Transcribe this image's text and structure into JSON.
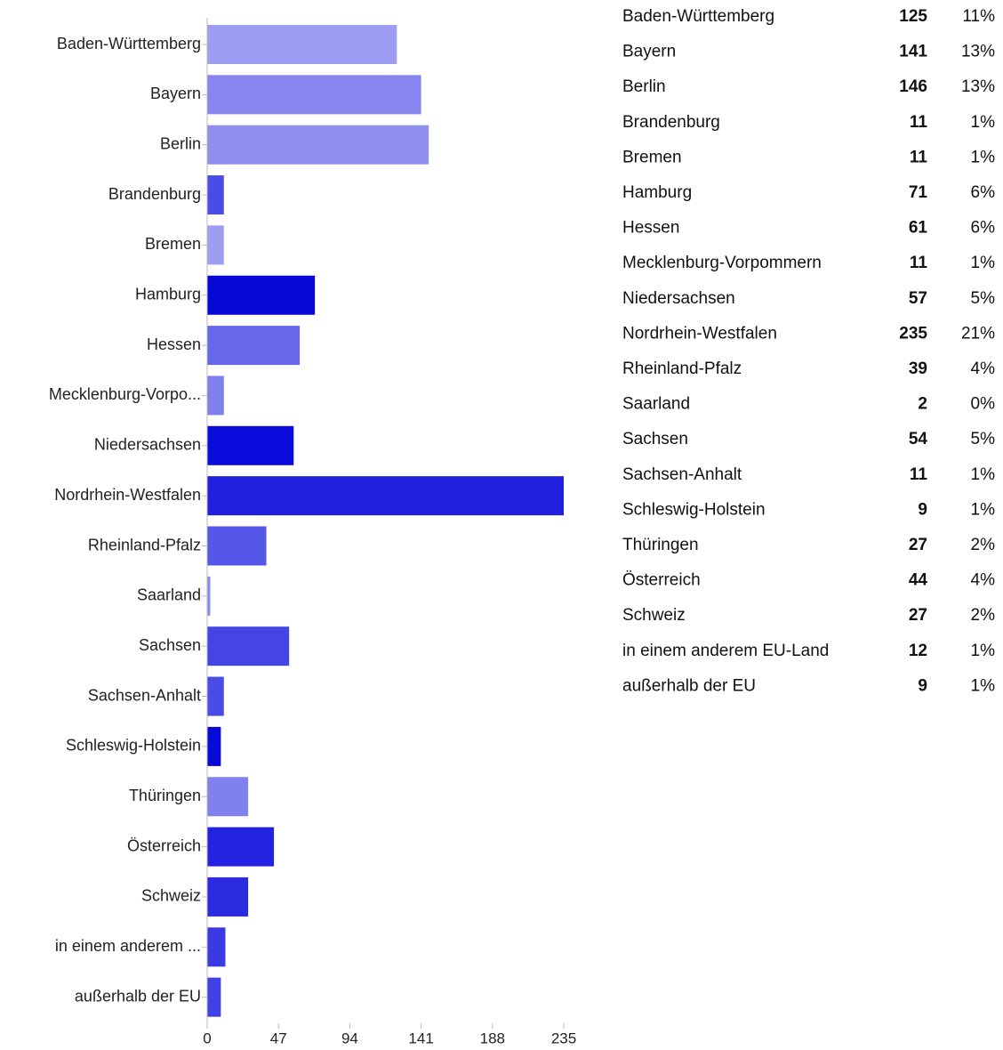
{
  "chart_data": {
    "type": "hbar",
    "categories": [
      "Baden-Württemberg",
      "Bayern",
      "Berlin",
      "Brandenburg",
      "Bremen",
      "Hamburg",
      "Hessen",
      "Mecklenburg-Vorpo...",
      "Niedersachsen",
      "Nordrhein-Westfalen",
      "Rheinland-Pfalz",
      "Saarland",
      "Sachsen",
      "Sachsen-Anhalt",
      "Schleswig-Holstein",
      "Thüringen",
      "Österreich",
      "Schweiz",
      "in einem anderem ...",
      "außerhalb der EU"
    ],
    "values": [
      125,
      141,
      146,
      11,
      11,
      71,
      61,
      11,
      57,
      235,
      39,
      2,
      54,
      11,
      9,
      27,
      44,
      27,
      12,
      9
    ],
    "colors": [
      "#9d9df2",
      "#8686ee",
      "#8f8ff0",
      "#4b4be8",
      "#9d9df2",
      "#0707d6",
      "#6767ea",
      "#7f7fee",
      "#0b0bdc",
      "#2020df",
      "#5656e8",
      "#8888ee",
      "#4545e6",
      "#4b4be8",
      "#0909d8",
      "#8080ee",
      "#2222df",
      "#2b2be2",
      "#3a3ae4",
      "#4141e6"
    ],
    "xlim": [
      0,
      235
    ],
    "xticks": [
      0,
      47,
      94,
      141,
      188,
      235
    ]
  },
  "table": {
    "rows": [
      [
        "Baden-Württemberg",
        "125",
        "11%"
      ],
      [
        "Bayern",
        "141",
        "13%"
      ],
      [
        "Berlin",
        "146",
        "13%"
      ],
      [
        "Brandenburg",
        "11",
        "1%"
      ],
      [
        "Bremen",
        "11",
        "1%"
      ],
      [
        "Hamburg",
        "71",
        "6%"
      ],
      [
        "Hessen",
        "61",
        "6%"
      ],
      [
        "Mecklenburg-Vorpommern",
        "11",
        "1%"
      ],
      [
        "Niedersachsen",
        "57",
        "5%"
      ],
      [
        "Nordrhein-Westfalen",
        "235",
        "21%"
      ],
      [
        "Rheinland-Pfalz",
        "39",
        "4%"
      ],
      [
        "Saarland",
        "2",
        "0%"
      ],
      [
        "Sachsen",
        "54",
        "5%"
      ],
      [
        "Sachsen-Anhalt",
        "11",
        "1%"
      ],
      [
        "Schleswig-Holstein",
        "9",
        "1%"
      ],
      [
        "Thüringen",
        "27",
        "2%"
      ],
      [
        "Österreich",
        "44",
        "4%"
      ],
      [
        "Schweiz",
        "27",
        "2%"
      ],
      [
        "in einem anderem EU-Land",
        "12",
        "1%"
      ],
      [
        "außerhalb der EU",
        "9",
        "1%"
      ]
    ]
  }
}
